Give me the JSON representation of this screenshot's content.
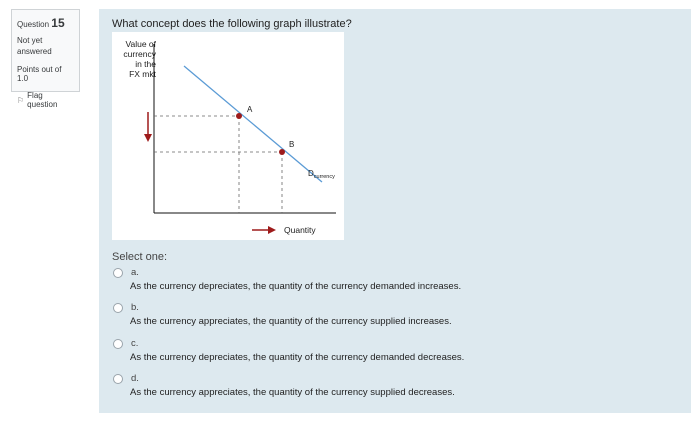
{
  "question": {
    "label": "Question",
    "number": "15",
    "state": "Not yet answered",
    "marks": "Points out of 1.0",
    "flag_label": "Flag question",
    "text": "What concept does the following graph illustrate?"
  },
  "graph": {
    "y_label": [
      "Value of",
      "currency",
      "in the",
      "FX mkt"
    ],
    "x_label": "Quantity",
    "point_a": "A",
    "point_b": "B",
    "curve_label_main": "D",
    "curve_label_sub": "currency"
  },
  "select_one": "Select one:",
  "options": [
    {
      "letter": "a.",
      "text": "As the currency depreciates, the quantity of the currency demanded increases."
    },
    {
      "letter": "b.",
      "text": "As the currency appreciates, the quantity of the currency supplied increases."
    },
    {
      "letter": "c.",
      "text": "As the currency depreciates, the quantity of the currency demanded decreases."
    },
    {
      "letter": "d.",
      "text": "As the currency appreciates, the quantity of the currency supplied decreases."
    }
  ],
  "colors": {
    "curve": "#5b9bd5",
    "point": "#9e1b1b",
    "panel": "#dde9ef"
  }
}
